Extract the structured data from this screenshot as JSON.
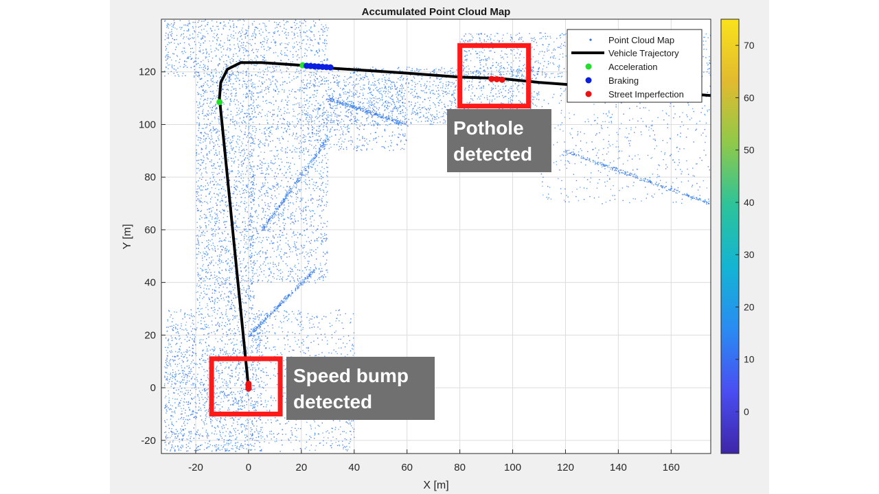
{
  "chart_data": {
    "type": "scatter",
    "title": "Accumulated Point Cloud Map",
    "xlabel": "X [m]",
    "ylabel": "Y [m]",
    "xlim": [
      -33,
      175
    ],
    "ylim": [
      -25,
      140
    ],
    "xticks": [
      -20,
      0,
      20,
      40,
      60,
      80,
      100,
      120,
      140,
      160
    ],
    "yticks": [
      -20,
      0,
      20,
      40,
      60,
      80,
      100,
      120
    ],
    "grid": true,
    "legend_position": "top-right",
    "legend": [
      {
        "label": "Point Cloud Map",
        "marker": "dot",
        "color": "#2f6fe0"
      },
      {
        "label": "Vehicle Trajectory",
        "marker": "line",
        "color": "#000000"
      },
      {
        "label": "Acceleration",
        "marker": "circle",
        "color": "#22e02a"
      },
      {
        "label": "Braking",
        "marker": "circle",
        "color": "#0a1ee0"
      },
      {
        "label": "Street Imperfection",
        "marker": "circle",
        "color": "#ee1111"
      }
    ],
    "colorbar": {
      "min": -8,
      "max": 75,
      "ticks": [
        0,
        10,
        20,
        30,
        40,
        50,
        60,
        70
      ],
      "colormap": "parula",
      "stops": [
        "#3e26a8",
        "#4a4ef2",
        "#2a8bf2",
        "#14b4d4",
        "#2cc39a",
        "#8fc94a",
        "#e2ba2f",
        "#f9e21c"
      ]
    },
    "trajectory": [
      [
        0,
        0
      ],
      [
        -2,
        20
      ],
      [
        -4,
        40
      ],
      [
        -6,
        60
      ],
      [
        -8,
        80
      ],
      [
        -10,
        100
      ],
      [
        -11,
        110
      ],
      [
        -10.5,
        116
      ],
      [
        -8,
        121
      ],
      [
        -3,
        123.5
      ],
      [
        5,
        123.5
      ],
      [
        20,
        122.5
      ],
      [
        30,
        121.5
      ],
      [
        45,
        120.5
      ],
      [
        60,
        119.5
      ],
      [
        80,
        118
      ],
      [
        95,
        117.5
      ],
      [
        110,
        116
      ],
      [
        130,
        114.5
      ],
      [
        150,
        113
      ],
      [
        175,
        111
      ]
    ],
    "series": [
      {
        "name": "Acceleration",
        "color": "#22e02a",
        "points": [
          [
            -11,
            108.5
          ],
          [
            20.5,
            122.5
          ]
        ]
      },
      {
        "name": "Braking",
        "color": "#0a1ee0",
        "points": [
          [
            22,
            122.3
          ],
          [
            23.5,
            122.2
          ],
          [
            25,
            122.1
          ],
          [
            26.5,
            122
          ],
          [
            28,
            121.9
          ],
          [
            29.5,
            121.8
          ],
          [
            31,
            121.7
          ]
        ]
      },
      {
        "name": "Street Imperfection",
        "color": "#ee1111",
        "points": [
          [
            0,
            1.5
          ],
          [
            0,
            0.8
          ],
          [
            0,
            0.2
          ],
          [
            0,
            -0.3
          ],
          [
            92,
            117.3
          ],
          [
            94,
            117.2
          ],
          [
            96,
            117.0
          ]
        ]
      }
    ],
    "annotations": [
      {
        "text": [
          "Pothole",
          "detected"
        ],
        "box": {
          "x": [
            80,
            106
          ],
          "y": [
            107,
            130
          ]
        }
      },
      {
        "text": [
          "Speed bump",
          "detected"
        ],
        "box": {
          "x": [
            -14,
            12
          ],
          "y": [
            -10,
            11
          ]
        }
      }
    ]
  }
}
